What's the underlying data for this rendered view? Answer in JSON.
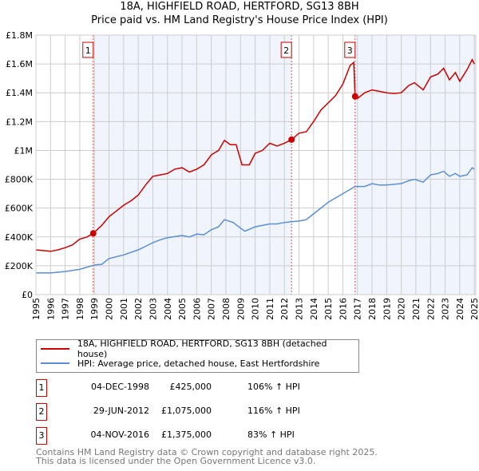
{
  "title": "18A, HIGHFIELD ROAD, HERTFORD, SG13 8BH",
  "subtitle": "Price paid vs. HM Land Registry's House Price Index (HPI)",
  "chart_data": {
    "type": "line",
    "xlim": [
      1995,
      2025.1
    ],
    "ylim": [
      0,
      1800000
    ],
    "yticks": [
      0,
      200000,
      400000,
      600000,
      800000,
      1000000,
      1200000,
      1400000,
      1600000,
      1800000
    ],
    "ytick_labels": [
      "£0",
      "£200K",
      "£400K",
      "£600K",
      "£800K",
      "£1M",
      "£1.2M",
      "£1.4M",
      "£1.6M",
      "£1.8M"
    ],
    "xticks": [
      "1995",
      "1996",
      "1997",
      "1998",
      "1999",
      "2000",
      "2001",
      "2002",
      "2003",
      "2004",
      "2005",
      "2006",
      "2007",
      "2008",
      "2009",
      "2010",
      "2011",
      "2012",
      "2013",
      "2014",
      "2015",
      "2016",
      "2017",
      "2018",
      "2019",
      "2020",
      "2021",
      "2022",
      "2023",
      "2024",
      "2025"
    ],
    "grid": true,
    "series": [
      {
        "name": "18A, HIGHFIELD ROAD, HERTFORD, SG13 8BH (detached house)",
        "color": "#cc0000",
        "x": [
          1995,
          1995.5,
          1996,
          1996.5,
          1997,
          1997.5,
          1998,
          1998.5,
          1998.92,
          1999.5,
          2000,
          2000.5,
          2001,
          2001.5,
          2002,
          2002.5,
          2003,
          2003.5,
          2004,
          2004.5,
          2005,
          2005.5,
          2006,
          2006.5,
          2007,
          2007.5,
          2007.9,
          2008.3,
          2008.7,
          2009.1,
          2009.6,
          2010,
          2010.5,
          2011,
          2011.5,
          2012,
          2012.49,
          2013,
          2013.5,
          2014,
          2014.5,
          2015,
          2015.5,
          2016,
          2016.5,
          2016.75,
          2016.84,
          2017,
          2017.5,
          2018,
          2018.5,
          2019,
          2019.5,
          2020,
          2020.5,
          2020.9,
          2021.5,
          2022,
          2022.5,
          2022.9,
          2023.3,
          2023.7,
          2024,
          2024.5,
          2024.85,
          2025
        ],
        "y": [
          310000,
          305000,
          300000,
          310000,
          325000,
          345000,
          385000,
          400000,
          425000,
          480000,
          540000,
          580000,
          620000,
          650000,
          690000,
          760000,
          820000,
          830000,
          840000,
          870000,
          880000,
          850000,
          870000,
          900000,
          970000,
          1000000,
          1070000,
          1040000,
          1040000,
          900000,
          900000,
          980000,
          1000000,
          1050000,
          1030000,
          1050000,
          1075000,
          1120000,
          1130000,
          1200000,
          1280000,
          1330000,
          1380000,
          1460000,
          1590000,
          1610000,
          1375000,
          1360000,
          1400000,
          1420000,
          1410000,
          1400000,
          1395000,
          1400000,
          1450000,
          1470000,
          1420000,
          1510000,
          1530000,
          1570000,
          1490000,
          1540000,
          1480000,
          1560000,
          1630000,
          1600000
        ]
      },
      {
        "name": "HPI: Average price, detached house, East Hertfordshire",
        "color": "#5b8fd4",
        "x": [
          1995,
          1996,
          1997,
          1998,
          1999,
          1999.5,
          2000,
          2001,
          2002,
          2003,
          2003.5,
          2004,
          2005,
          2005.5,
          2006,
          2006.5,
          2007,
          2007.5,
          2007.9,
          2008.5,
          2009,
          2009.3,
          2010,
          2011,
          2011.5,
          2012,
          2012.5,
          2013,
          2013.5,
          2014,
          2015,
          2016,
          2016.84,
          2017.5,
          2018,
          2018.5,
          2019,
          2019.5,
          2020,
          2020.5,
          2020.9,
          2021.5,
          2022,
          2022.5,
          2022.9,
          2023.3,
          2023.7,
          2024,
          2024.5,
          2024.85,
          2025
        ],
        "y": [
          150000,
          150000,
          160000,
          175000,
          205000,
          210000,
          250000,
          275000,
          310000,
          360000,
          380000,
          395000,
          410000,
          400000,
          420000,
          415000,
          450000,
          470000,
          520000,
          500000,
          460000,
          440000,
          470000,
          490000,
          490000,
          500000,
          505000,
          510000,
          520000,
          560000,
          640000,
          700000,
          750000,
          750000,
          770000,
          760000,
          760000,
          765000,
          770000,
          790000,
          800000,
          780000,
          830000,
          840000,
          855000,
          820000,
          840000,
          820000,
          830000,
          880000,
          870000
        ]
      }
    ],
    "sales": [
      {
        "label": "1",
        "x": 1998.92,
        "y": 425000
      },
      {
        "label": "2",
        "x": 2012.49,
        "y": 1075000
      },
      {
        "label": "3",
        "x": 2016.84,
        "y": 1375000
      }
    ]
  },
  "legend": {
    "red": "18A, HIGHFIELD ROAD, HERTFORD, SG13 8BH (detached house)",
    "blue": "HPI: Average price, detached house, East Hertfordshire"
  },
  "transactions": [
    {
      "num": "1",
      "date": "04-DEC-1998",
      "price": "£425,000",
      "hpi": "106% ↑ HPI"
    },
    {
      "num": "2",
      "date": "29-JUN-2012",
      "price": "£1,075,000",
      "hpi": "116% ↑ HPI"
    },
    {
      "num": "3",
      "date": "04-NOV-2016",
      "price": "£1,375,000",
      "hpi": "83% ↑ HPI"
    }
  ],
  "footer": {
    "line1": "Contains HM Land Registry data © Crown copyright and database right 2025.",
    "line2": "This data is licensed under the Open Government Licence v3.0."
  }
}
